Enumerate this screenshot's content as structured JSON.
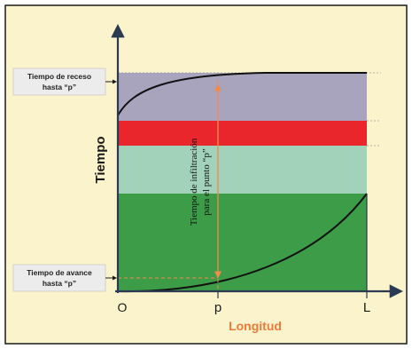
{
  "labels": {
    "time_axis": "Tiempo",
    "length_axis": "Longitud",
    "origin": "O",
    "point_p": "p",
    "end_L": "L",
    "recession_label_line1": "Tiempo de receso",
    "recession_label_line2": "hasta “p”",
    "advance_label_line1": "Tiempo de avance",
    "advance_label_line2": "hasta “p”",
    "infiltration_line1": "Tiempo de infiltración",
    "infiltration_line2": "para el punto “p”"
  },
  "colors": {
    "background": "#fbf3cc",
    "frame": "#1a1a1a",
    "band_recession": "#a8a4bd",
    "band_red": "#e8262b",
    "band_light_green": "#a3d2bb",
    "band_green": "#3d9c47",
    "curve": "#111111",
    "arrow_orange": "#f28a4a",
    "axis_text": "#f07a3a",
    "label_box": "#ececec",
    "axis": "#2a3a50"
  }
}
